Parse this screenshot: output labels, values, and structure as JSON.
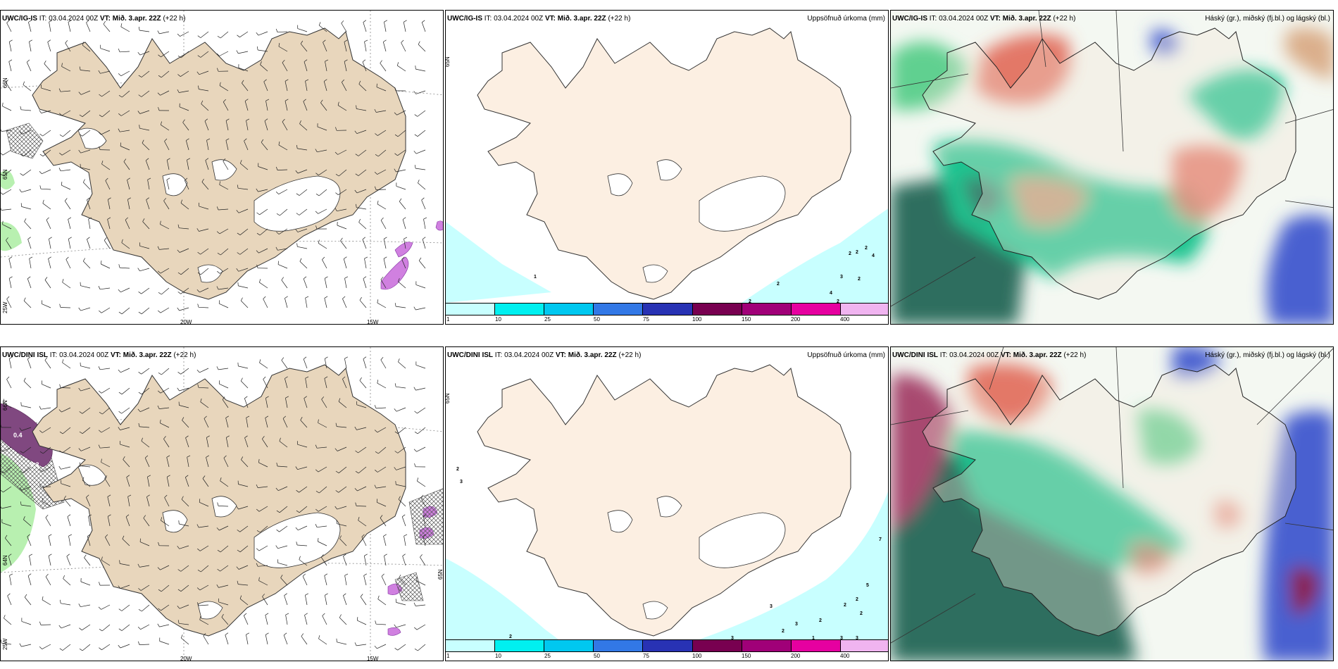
{
  "panels": [
    {
      "model": "UWC/IG-IS",
      "it_prefix": "IT:",
      "it": "03.04.2024 00Z",
      "vt_label": "VT:",
      "vt": "Mið. 3.apr. 22Z",
      "lead": "(+22 h)",
      "right_title": "",
      "lat_labels": [
        "66N",
        "65N",
        "25W"
      ],
      "lon_labels": [
        "20W",
        "15W"
      ]
    },
    {
      "model": "UWC/IG-IS",
      "it_prefix": "IT:",
      "it": "03.04.2024 00Z",
      "vt_label": "VT:",
      "vt": "Mið. 3.apr. 22Z",
      "lead": "(+22 h)",
      "right_title": "Uppsöfnuð úrkoma (mm)",
      "lat_labels": [
        "65N"
      ],
      "lon_labels": []
    },
    {
      "model": "UWC/IG-IS",
      "it_prefix": "IT:",
      "it": "03.04.2024 00Z",
      "vt_label": "VT:",
      "vt": "Mið. 3.apr. 22Z",
      "lead": "(+22 h)",
      "right_title": "Háský (gr.), miðský (fj.bl.) og lágský (bl.)",
      "lat_labels": [],
      "lon_labels": []
    },
    {
      "model": "UWC/DINI ISL",
      "it_prefix": "IT:",
      "it": "03.04.2024 00Z",
      "vt_label": "VT:",
      "vt": "Mið. 3.apr. 22Z",
      "lead": "(+22 h)",
      "right_title": "",
      "lat_labels": [
        "66N",
        "64N",
        "65N",
        "25W"
      ],
      "lon_labels": [
        "20W",
        "15W"
      ]
    },
    {
      "model": "UWC/DINI ISL",
      "it_prefix": "IT:",
      "it": "03.04.2024 00Z",
      "vt_label": "VT:",
      "vt": "Mið. 3.apr. 22Z",
      "lead": "(+22 h)",
      "right_title": "Uppsöfnuð úrkoma (mm)",
      "lat_labels": [
        "65N"
      ],
      "lon_labels": []
    },
    {
      "model": "UWC/DINI ISL",
      "it_prefix": "IT:",
      "it": "03.04.2024 00Z",
      "vt_label": "VT:",
      "vt": "Mið. 3.apr. 22Z",
      "lead": "(+22 h)",
      "right_title": "Háský (gr.), miðský (fj.bl.) og lágský (bl.)",
      "lat_labels": [],
      "lon_labels": []
    }
  ],
  "precip_scale": {
    "ticks": [
      "1",
      "10",
      "25",
      "50",
      "75",
      "100",
      "150",
      "200",
      "400"
    ],
    "colors": [
      "#c8ffff",
      "#00f0f0",
      "#00c8f0",
      "#3278e6",
      "#2832b4",
      "#780050",
      "#a00078",
      "#e600a0",
      "#f0b4f0"
    ]
  },
  "precip_numbers_top": [
    "1",
    "2",
    "2",
    "2",
    "4",
    "2",
    "3",
    "2",
    "4",
    "2",
    "2"
  ],
  "precip_numbers_bottom": [
    "2",
    "3",
    "2",
    "2",
    "7",
    "5",
    "2",
    "2",
    "3",
    "3",
    "2",
    "2",
    "2",
    "1",
    "3",
    "3",
    "3"
  ],
  "ice_labels_bottom": [
    "0.4",
    "0.3"
  ],
  "colors": {
    "land": "#f5e8d4",
    "land_left": "#e8d6bc",
    "glacier": "#ffffff",
    "frame": "#000000"
  }
}
